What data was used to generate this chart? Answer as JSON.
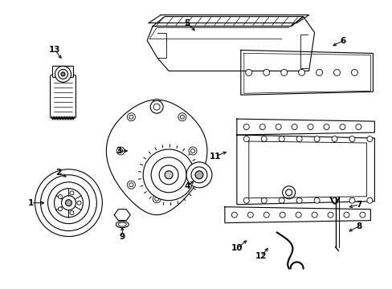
{
  "bg_color": "#ffffff",
  "fig_width": 4.89,
  "fig_height": 3.6,
  "dpi": 100,
  "line_color": "#000000",
  "text_color": "#000000",
  "label_fontsize": 7.5
}
